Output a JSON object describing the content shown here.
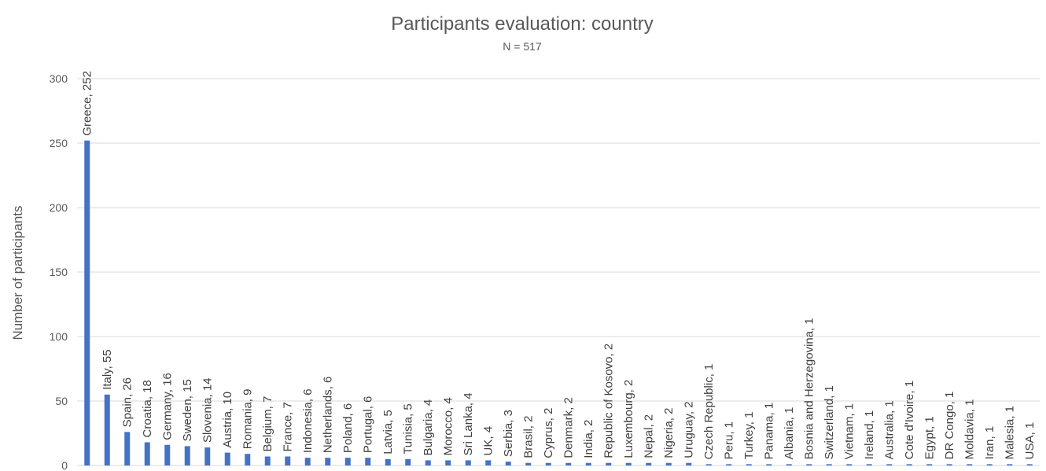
{
  "chart_data": {
    "type": "bar",
    "title": "Participants evaluation: country",
    "subtitle": "N = 517",
    "xlabel": "",
    "ylabel": "Number of participants",
    "ylim": [
      0,
      300
    ],
    "yticks": [
      0,
      50,
      100,
      150,
      200,
      250,
      300
    ],
    "grid": true,
    "data_label_separator": ", ",
    "bar_color": "#4472C4",
    "categories": [
      "Greece",
      "Italy",
      "Spain",
      "Croatia",
      "Germany",
      "Sweden",
      "Slovenia",
      "Austria",
      "Romania",
      "Belgium",
      "France",
      "Indonesia",
      "Netherlands",
      "Poland",
      "Portugal",
      "Latvia",
      "Tunisia",
      "Bulgaria",
      "Morocco",
      "Sri Lanka",
      "UK",
      "Serbia",
      "Brasil",
      "Cyprus",
      "Denmark",
      "India",
      "Republic of Kosovo",
      "Luxembourg",
      "Nepal",
      "Nigeria",
      "Uruguay",
      "Czech Republic",
      "Peru",
      "Turkey",
      "Panama",
      "Albania",
      "Bosnia and Herzegovina",
      "Switzerland",
      "Vietnam",
      "Ireland",
      "Australia",
      "Cote d'Ivoire",
      "Egypt",
      "DR Congo",
      "Moldavia",
      "Iran",
      "Malesia",
      "USA"
    ],
    "values": [
      252,
      55,
      26,
      18,
      16,
      15,
      14,
      10,
      9,
      7,
      7,
      6,
      6,
      6,
      6,
      5,
      5,
      4,
      4,
      4,
      4,
      3,
      2,
      2,
      2,
      2,
      2,
      2,
      2,
      2,
      2,
      1,
      1,
      1,
      1,
      1,
      1,
      1,
      1,
      1,
      1,
      1,
      1,
      1,
      1,
      1,
      1,
      1
    ]
  }
}
